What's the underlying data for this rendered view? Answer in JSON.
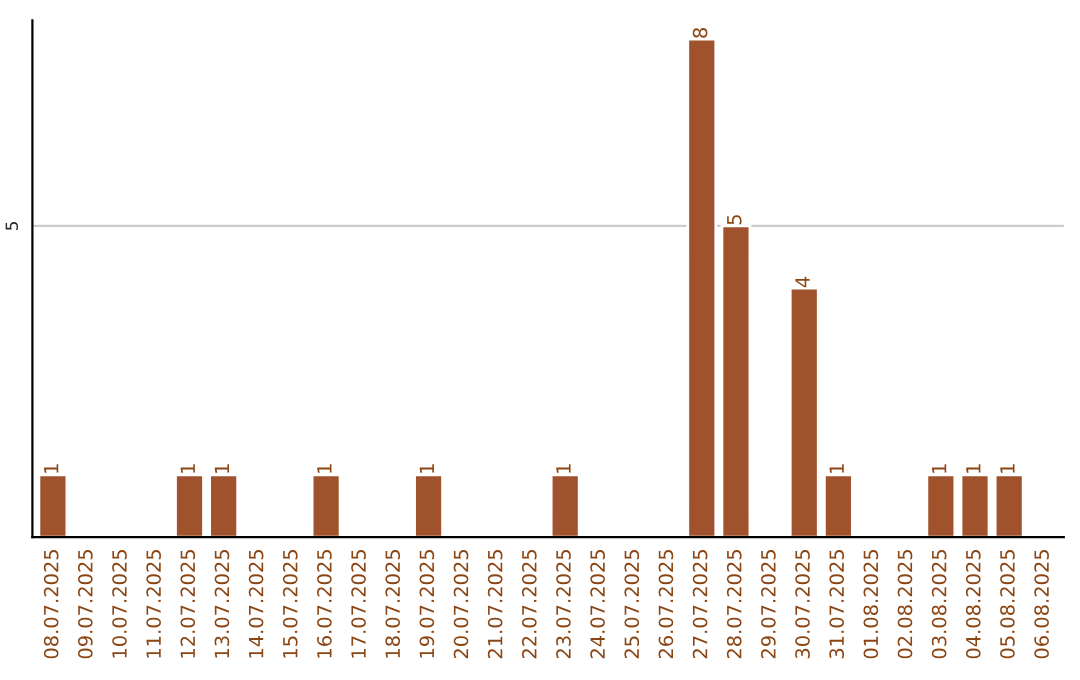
{
  "chart_data": {
    "type": "bar",
    "categories": [
      "08.07.2025",
      "09.07.2025",
      "10.07.2025",
      "11.07.2025",
      "12.07.2025",
      "13.07.2025",
      "14.07.2025",
      "15.07.2025",
      "16.07.2025",
      "17.07.2025",
      "18.07.2025",
      "19.07.2025",
      "20.07.2025",
      "21.07.2025",
      "22.07.2025",
      "23.07.2025",
      "24.07.2025",
      "25.07.2025",
      "26.07.2025",
      "27.07.2025",
      "28.07.2025",
      "29.07.2025",
      "30.07.2025",
      "31.07.2025",
      "01.08.2025",
      "02.08.2025",
      "03.08.2025",
      "04.08.2025",
      "05.08.2025",
      "06.08.2025"
    ],
    "values": [
      1,
      null,
      null,
      null,
      1,
      1,
      null,
      null,
      1,
      null,
      null,
      1,
      null,
      null,
      null,
      1,
      null,
      null,
      null,
      8,
      5,
      null,
      4,
      1,
      null,
      null,
      1,
      1,
      1,
      null
    ],
    "color": "#a0522d",
    "ylim": [
      0,
      8.3
    ],
    "yticks": [
      5
    ],
    "grid": "y",
    "data_labels": true,
    "legend": false
  }
}
